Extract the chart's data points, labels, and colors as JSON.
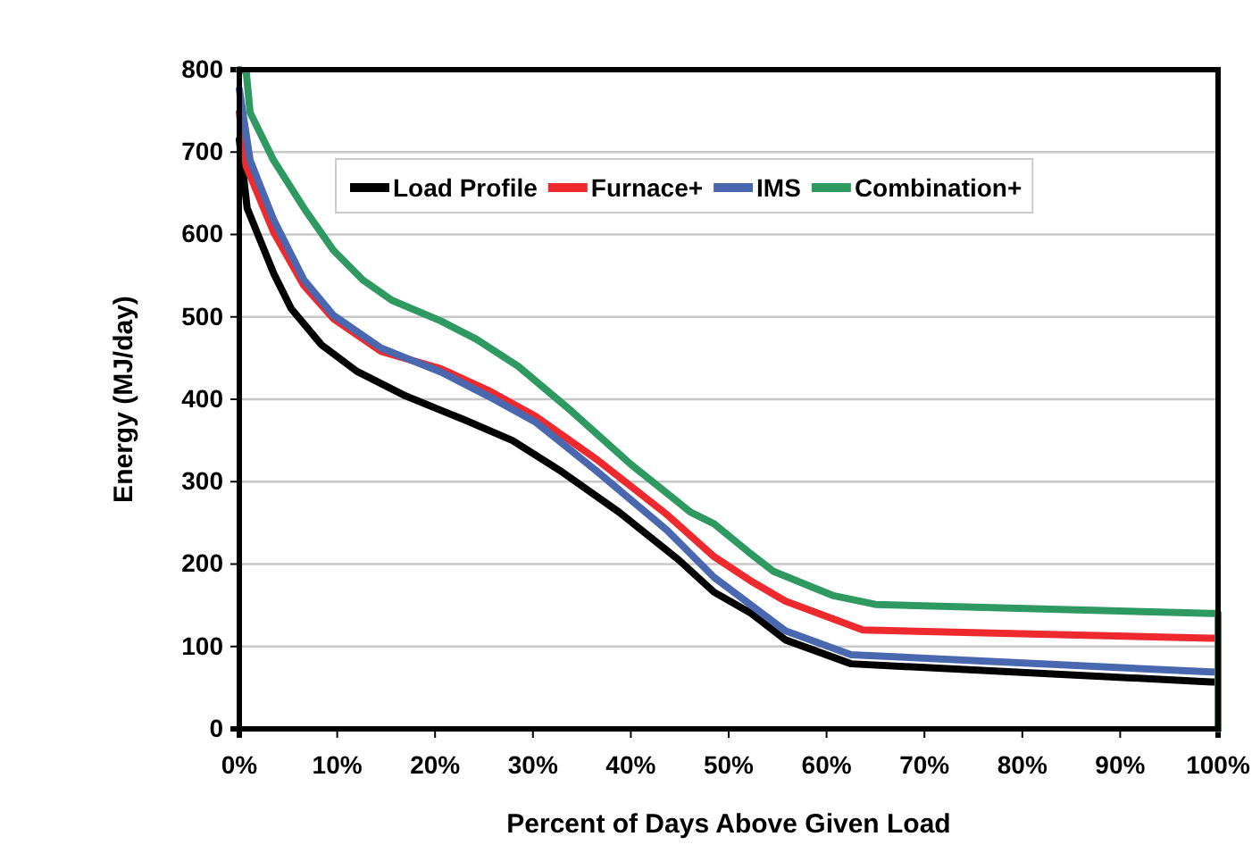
{
  "chart_data": {
    "type": "line",
    "xlabel": "Percent of Days Above Given Load",
    "ylabel": "Energy (MJ/day)",
    "xlim": [
      0,
      100
    ],
    "ylim": [
      0,
      800
    ],
    "xticks": [
      {
        "value": 0,
        "label": "0%"
      },
      {
        "value": 10,
        "label": "10%"
      },
      {
        "value": 20,
        "label": "20%"
      },
      {
        "value": 30,
        "label": "30%"
      },
      {
        "value": 40,
        "label": "40%"
      },
      {
        "value": 50,
        "label": "50%"
      },
      {
        "value": 60,
        "label": "60%"
      },
      {
        "value": 70,
        "label": "70%"
      },
      {
        "value": 80,
        "label": "80%"
      },
      {
        "value": 90,
        "label": "90%"
      },
      {
        "value": 100,
        "label": "100%"
      }
    ],
    "yticks": [
      0,
      100,
      200,
      300,
      400,
      500,
      600,
      700,
      800
    ],
    "grid": "y",
    "legend": "top",
    "marker": "none",
    "line_style": "solid",
    "series": [
      {
        "name": "Load Profile",
        "color": "#000000",
        "x": [
          0,
          0.8,
          3.5,
          5.3,
          8.4,
          12,
          17,
          23,
          27.9,
          32.7,
          38.8,
          44.9,
          48.5,
          52.2,
          55.8,
          62.5,
          99.3,
          100,
          100
        ],
        "values": [
          715,
          632,
          553,
          510,
          466,
          434,
          404,
          375,
          350,
          314,
          263,
          205,
          166,
          141,
          108,
          79,
          57,
          57,
          0
        ]
      },
      {
        "name": "Furnace+",
        "color": "#ee2a2e",
        "x": [
          0,
          0.7,
          3.5,
          6.6,
          9.6,
          14.5,
          20.6,
          25.4,
          30.3,
          36.4,
          43.7,
          48.5,
          52.2,
          55.8,
          63.7,
          99.3,
          100,
          100
        ],
        "values": [
          748,
          683,
          603,
          538,
          498,
          458,
          437,
          411,
          379,
          328,
          260,
          209,
          180,
          155,
          120,
          110,
          110,
          0
        ]
      },
      {
        "name": "IMS",
        "color": "#4a68b0",
        "x": [
          0,
          1.1,
          3.5,
          6.6,
          9.6,
          14.5,
          20.6,
          25.4,
          30.3,
          36.4,
          43.7,
          48.5,
          52.2,
          55.8,
          62.5,
          99.3,
          100,
          100
        ],
        "values": [
          776,
          690,
          618,
          545,
          502,
          462,
          433,
          404,
          372,
          314,
          241,
          184,
          151,
          119,
          90,
          69,
          69,
          0
        ]
      },
      {
        "name": "Combination+",
        "color": "#2e9a62",
        "x": [
          0,
          0.7,
          1.1,
          3.5,
          6.6,
          9.6,
          12.6,
          15.6,
          20.6,
          24.2,
          28.5,
          33.9,
          40,
          46.1,
          48.5,
          52.2,
          54.6,
          60.6,
          65,
          99.3,
          100,
          100
        ],
        "values": [
          800,
          798,
          748,
          690,
          632,
          581,
          545,
          520,
          495,
          473,
          440,
          386,
          321,
          263,
          249,
          213,
          191,
          162,
          151,
          140,
          140,
          0
        ]
      }
    ]
  }
}
